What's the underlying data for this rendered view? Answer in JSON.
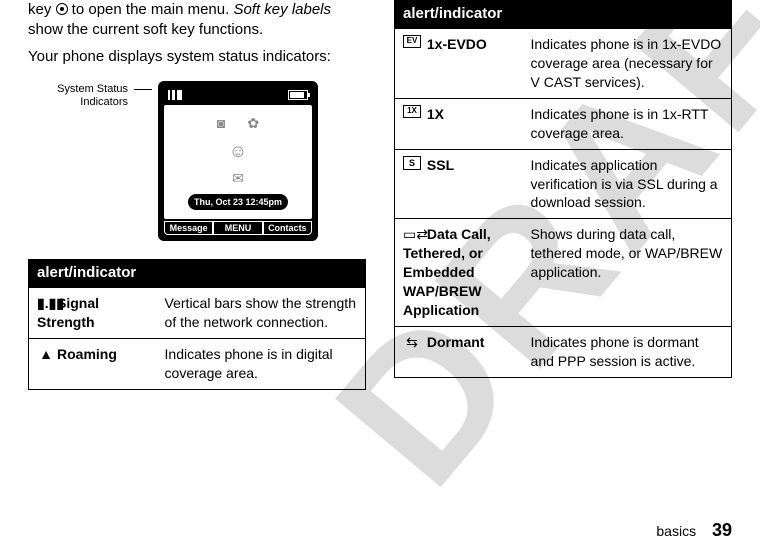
{
  "intro": {
    "line1_pre": "key ",
    "line1_post": " to open the main menu. ",
    "line1_softkey": "Soft key labels",
    "line1_rest": " show the current soft key functions.",
    "line2": "Your phone displays system status indicators:"
  },
  "phone": {
    "label": "System Status Indicators",
    "date": "Thu, Oct 23 12:45pm",
    "softkeys": [
      "Message",
      "MENU",
      "Contacts"
    ]
  },
  "left_table": {
    "header": "alert/indicator",
    "rows": [
      {
        "icon": "📶",
        "name": "Signal Strength",
        "desc": "Vertical bars show the strength of the network connection."
      },
      {
        "icon": "▲",
        "name": "Roaming",
        "desc": "Indicates phone is in digital coverage area."
      }
    ]
  },
  "right_table": {
    "header": "alert/indicator",
    "rows": [
      {
        "icon": "EV",
        "name": "1x-EVDO",
        "desc": "Indicates phone is in 1x-EVDO coverage area (necessary for V CAST services)."
      },
      {
        "icon": "1X",
        "name": "1X",
        "desc": "Indicates phone is in 1x-RTT coverage area."
      },
      {
        "icon": "S",
        "name": "SSL",
        "desc": "Indicates application verification is via SSL during a download session."
      },
      {
        "icon": "⇄",
        "name": "Data Call, Tethered, or Embedded WAP/BREW Application",
        "desc": "Shows during data call, tethered mode, or WAP/BREW application."
      },
      {
        "icon": "⇆",
        "name": "Dormant",
        "desc": "Indicates phone is dormant and PPP session is active."
      }
    ]
  },
  "footer": {
    "section": "basics",
    "page": "39"
  }
}
